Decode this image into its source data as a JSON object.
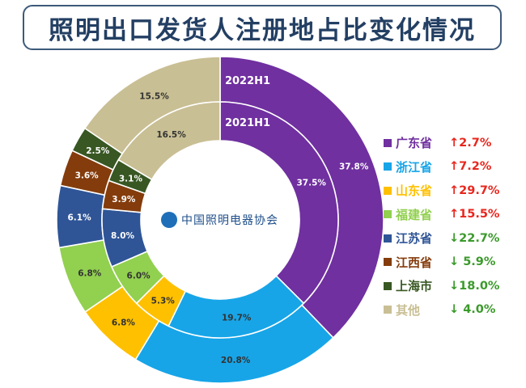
{
  "title": "照明出口发货人注册地占比变化情况",
  "logo_text": "中国照明电器协会",
  "chart_data": {
    "type": "donut",
    "rings": [
      {
        "name": "2022H1",
        "ring": "outer",
        "values": [
          37.8,
          20.8,
          6.8,
          6.8,
          6.1,
          3.6,
          2.5,
          15.5
        ]
      },
      {
        "name": "2021H1",
        "ring": "inner",
        "values": [
          37.5,
          19.7,
          5.3,
          6.0,
          8.0,
          3.9,
          3.1,
          16.5
        ]
      }
    ],
    "categories": [
      "广东省",
      "浙江省",
      "山东省",
      "福建省",
      "江苏省",
      "江西省",
      "上海市",
      "其他"
    ],
    "value_labels": {
      "outer": [
        "37.8%",
        "20.8%",
        "6.8%",
        "6.8%",
        "6.1%",
        "3.6%",
        "2.5%",
        "15.5%"
      ],
      "inner": [
        "37.5%",
        "19.7%",
        "5.3%",
        "6.0%",
        "8.0%",
        "3.9%",
        "3.1%",
        "16.5%"
      ]
    },
    "colors": [
      "#7030a0",
      "#17a5e8",
      "#ffc000",
      "#92d050",
      "#2f5597",
      "#843c0c",
      "#385723",
      "#c9bf94"
    ],
    "legend": {
      "placement": "right",
      "changes": [
        "↑2.7%",
        "↑7.2%",
        "↑29.7%",
        "↑15.5%",
        "↓22.7%",
        "↓ 5.9%",
        "↓18.0%",
        "↓ 4.0%"
      ],
      "directions": [
        "up",
        "up",
        "up",
        "up",
        "down",
        "down",
        "down",
        "down"
      ]
    },
    "change_colors": {
      "up": "#e8271e",
      "down": "#3a9a2a"
    }
  }
}
